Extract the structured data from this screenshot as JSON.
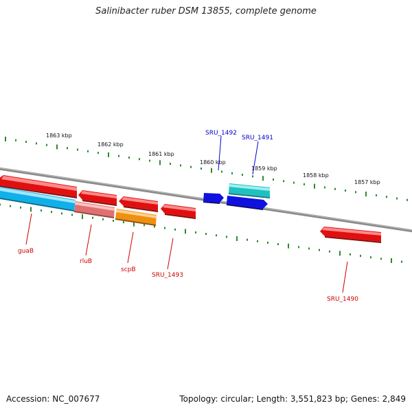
{
  "title": "Salinibacter ruber DSM 13855, complete genome",
  "footer": {
    "accession": "Accession: NC_007677",
    "topology": "Topology: circular; Length: 3,551,823 bp; Genes: 2,849"
  },
  "scale": {
    "ticks": [
      {
        "label": "1863 kbp",
        "kbp": 1863
      },
      {
        "label": "1862 kbp",
        "kbp": 1862
      },
      {
        "label": "1861 kbp",
        "kbp": 1861
      },
      {
        "label": "1860 kbp",
        "kbp": 1860
      },
      {
        "label": "1859 kbp",
        "kbp": 1859
      },
      {
        "label": "1858 kbp",
        "kbp": 1858
      },
      {
        "label": "1857 kbp",
        "kbp": 1857
      }
    ]
  },
  "colors": {
    "backbone": "#8a8a8a",
    "tick": "#2a8a2a",
    "forward_label": "#0000cc",
    "reverse_label": "#cc0000",
    "red_gene": "#e01010",
    "blue_gene": "#1010e0",
    "cyan_gene": "#20c0c0",
    "skyblue_gene": "#10b0e8",
    "pink_gene": "#e07070",
    "orange_gene": "#f09010"
  },
  "genes": [
    {
      "label": "SRU_1492",
      "strand": "forward",
      "color": "blue"
    },
    {
      "label": "SRU_1491",
      "strand": "forward",
      "color": "cyan"
    },
    {
      "label": "guaB",
      "strand": "reverse",
      "color": "skyblue"
    },
    {
      "label": "rluB",
      "strand": "reverse",
      "color": "pink"
    },
    {
      "label": "scpB",
      "strand": "reverse",
      "color": "orange"
    },
    {
      "label": "SRU_1493",
      "strand": "reverse",
      "color": "red"
    },
    {
      "label": "SRU_1490",
      "strand": "reverse",
      "color": "red"
    }
  ]
}
